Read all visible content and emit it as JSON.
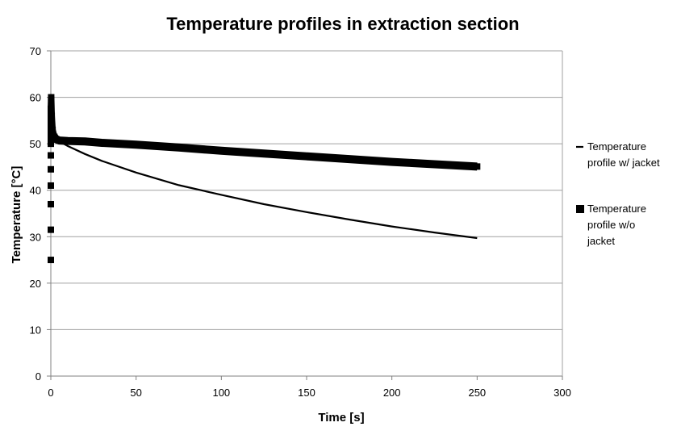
{
  "chart_data": {
    "type": "line",
    "title": "Temperature profiles in extraction section",
    "xlabel": "Time [s]",
    "ylabel": "Temperature [°C]",
    "xlim": [
      0,
      300
    ],
    "ylim": [
      0,
      70
    ],
    "x_ticks": [
      0,
      50,
      100,
      150,
      200,
      250,
      300
    ],
    "y_ticks": [
      0,
      10,
      20,
      30,
      40,
      50,
      60,
      70
    ],
    "grid": "horizontal",
    "legend_position": "right",
    "series": [
      {
        "name": "Temperature profile w/ jacket",
        "marker": "dash",
        "color": "#000000",
        "x": [
          0,
          2,
          5,
          10,
          20,
          30,
          50,
          75,
          100,
          125,
          150,
          175,
          200,
          225,
          250
        ],
        "y": [
          51,
          50.8,
          50.5,
          49.5,
          47.8,
          46.3,
          43.8,
          41.1,
          39.0,
          37.0,
          35.3,
          33.7,
          32.2,
          30.9,
          29.7
        ]
      },
      {
        "name": "Temperature profile w/o jacket",
        "marker": "square",
        "color": "#000000",
        "x": [
          0,
          0,
          0,
          0,
          0,
          0,
          0,
          0,
          0,
          0,
          0.2,
          0.5,
          1,
          2,
          3,
          5,
          10,
          20,
          30,
          50,
          75,
          100,
          125,
          150,
          175,
          200,
          225,
          250
        ],
        "y": [
          25,
          31.5,
          37,
          41,
          44.5,
          47.5,
          50,
          52.5,
          55,
          57.5,
          60,
          56,
          53,
          51.5,
          51,
          50.7,
          50.6,
          50.5,
          50.2,
          49.8,
          49.2,
          48.5,
          47.9,
          47.3,
          46.7,
          46.1,
          45.6,
          45.1
        ]
      }
    ]
  }
}
